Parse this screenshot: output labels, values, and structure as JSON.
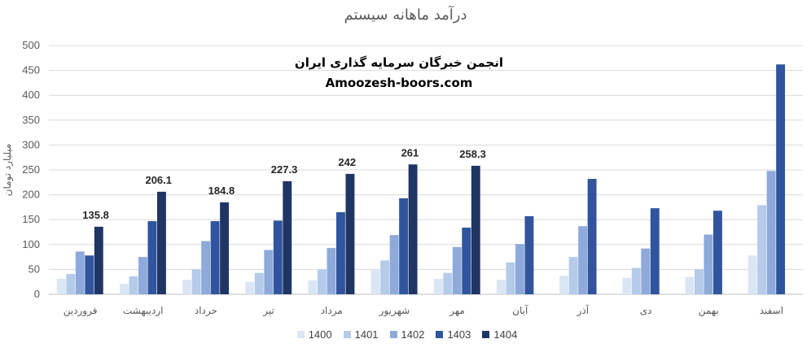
{
  "chart_data": {
    "type": "bar",
    "title": "درآمد ماهانه سیستم",
    "ylabel": "میلیارد تومان",
    "xlabel": "",
    "ylim": [
      0,
      500
    ],
    "yticks": [
      0,
      50,
      100,
      150,
      200,
      250,
      300,
      350,
      400,
      450,
      500
    ],
    "grid": true,
    "legend_position": "bottom",
    "categories": [
      "فروردین",
      "اردیبهشت",
      "خرداد",
      "تیر",
      "مرداد",
      "شهریور",
      "مهر",
      "آبان",
      "آذر",
      "دی",
      "بهمن",
      "اسفند"
    ],
    "series": [
      {
        "name": "1400",
        "color": "#dbe6f4",
        "values": [
          31,
          21,
          29,
          25,
          28,
          51,
          31,
          29,
          37,
          33,
          35,
          78
        ]
      },
      {
        "name": "1401",
        "color": "#b4cbe9",
        "values": [
          41,
          36,
          50,
          43,
          50,
          68,
          43,
          64,
          75,
          53,
          50,
          179
        ]
      },
      {
        "name": "1402",
        "color": "#8eaadb",
        "values": [
          86,
          75,
          107,
          89,
          93,
          119,
          95,
          101,
          137,
          92,
          120,
          248
        ]
      },
      {
        "name": "1403",
        "color": "#30559e",
        "values": [
          78,
          147,
          147,
          148,
          165,
          193,
          134,
          157,
          232,
          173,
          168,
          462
        ]
      },
      {
        "name": "1404",
        "color": "#1f3564",
        "values": [
          135.8,
          206.1,
          184.8,
          227.3,
          242,
          261,
          258.3,
          null,
          null,
          null,
          null,
          null
        ]
      }
    ],
    "data_labels": {
      "series": "1404",
      "labels": [
        "135.8",
        "206.1",
        "184.8",
        "227.3",
        "242",
        "261",
        "258.3"
      ]
    }
  },
  "watermark": {
    "line1": "انجمن خبرگان سرمایه گذاری ایران",
    "line2": "Amoozesh-boors.com"
  }
}
